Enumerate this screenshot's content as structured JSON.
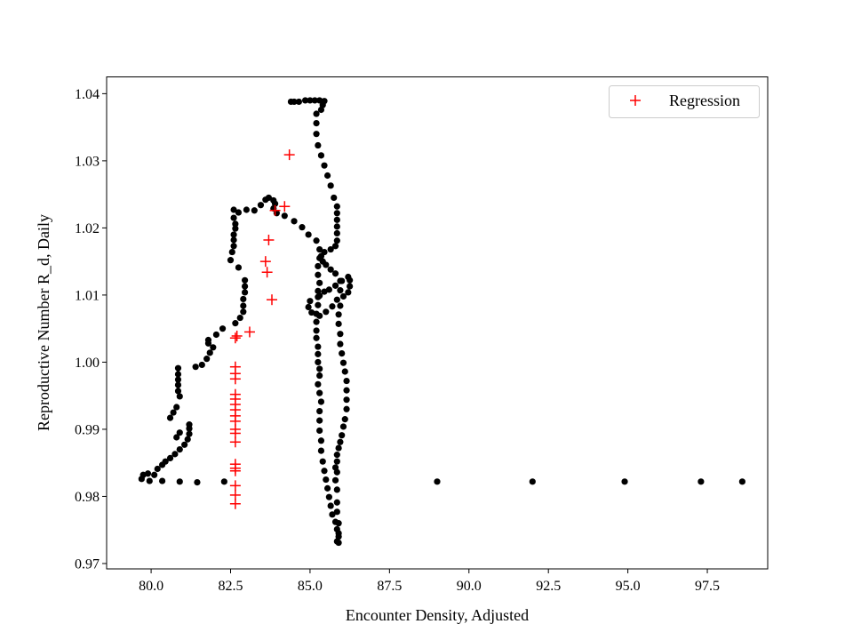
{
  "chart_data": {
    "type": "scatter",
    "title": "",
    "xlabel": "Encounter Density, Adjusted",
    "ylabel": "Reproductive Number R_d, Daily",
    "xlim": [
      78.6,
      99.4
    ],
    "ylim": [
      0.9692,
      1.0425
    ],
    "xticks": [
      "80.0",
      "82.5",
      "85.0",
      "87.5",
      "90.0",
      "92.5",
      "95.0",
      "97.5"
    ],
    "yticks": [
      "0.97",
      "0.98",
      "0.99",
      "1.00",
      "1.01",
      "1.02",
      "1.03",
      "1.04"
    ],
    "grid": false,
    "legend_position": "top-right",
    "series": [
      {
        "marker": "dot",
        "color": "#000000",
        "points": [
          [
            79.7,
            0.9826
          ],
          [
            79.75,
            0.9832
          ],
          [
            79.9,
            0.9834
          ],
          [
            80.1,
            0.9832
          ],
          [
            80.2,
            0.9841
          ],
          [
            80.35,
            0.9847
          ],
          [
            80.45,
            0.9852
          ],
          [
            80.6,
            0.9857
          ],
          [
            80.75,
            0.9863
          ],
          [
            80.9,
            0.987
          ],
          [
            81.05,
            0.9877
          ],
          [
            81.15,
            0.9885
          ],
          [
            81.2,
            0.9893
          ],
          [
            81.2,
            0.9901
          ],
          [
            81.2,
            0.9907
          ],
          [
            80.9,
            0.9895
          ],
          [
            80.8,
            0.9888
          ],
          [
            80.6,
            0.9917
          ],
          [
            80.7,
            0.9925
          ],
          [
            80.8,
            0.9933
          ],
          [
            80.9,
            0.9949
          ],
          [
            80.85,
            0.9957
          ],
          [
            80.85,
            0.9966
          ],
          [
            80.85,
            0.9974
          ],
          [
            80.85,
            0.9982
          ],
          [
            80.85,
            0.9991
          ],
          [
            81.4,
            0.9993
          ],
          [
            81.6,
            0.9996
          ],
          [
            81.75,
            1.0005
          ],
          [
            81.85,
            1.0014
          ],
          [
            81.95,
            1.0022
          ],
          [
            81.8,
            1.0028
          ],
          [
            81.8,
            1.0033
          ],
          [
            82.05,
            1.0041
          ],
          [
            82.25,
            1.005
          ],
          [
            82.65,
            1.0058
          ],
          [
            82.8,
            1.0066
          ],
          [
            82.9,
            1.0075
          ],
          [
            82.9,
            1.0084
          ],
          [
            82.9,
            1.0094
          ],
          [
            82.95,
            1.0104
          ],
          [
            82.95,
            1.0113
          ],
          [
            82.95,
            1.0122
          ],
          [
            82.75,
            1.0141
          ],
          [
            82.5,
            1.0152
          ],
          [
            82.55,
            1.0164
          ],
          [
            82.6,
            1.0173
          ],
          [
            82.6,
            1.0182
          ],
          [
            82.6,
            1.019
          ],
          [
            82.65,
            1.0199
          ],
          [
            82.65,
            1.0206
          ],
          [
            82.6,
            1.0215
          ],
          [
            82.6,
            1.0227
          ],
          [
            82.75,
            1.0223
          ],
          [
            83.0,
            1.0227
          ],
          [
            83.25,
            1.0226
          ],
          [
            83.45,
            1.0234
          ],
          [
            83.6,
            1.0242
          ],
          [
            83.7,
            1.0245
          ],
          [
            83.85,
            1.0241
          ],
          [
            83.9,
            1.0236
          ],
          [
            83.85,
            1.0229
          ],
          [
            83.95,
            1.0222
          ],
          [
            84.2,
            1.0218
          ],
          [
            84.5,
            1.021
          ],
          [
            84.75,
            1.0201
          ],
          [
            84.95,
            1.019
          ],
          [
            85.2,
            1.0181
          ],
          [
            85.3,
            1.0168
          ],
          [
            85.3,
            1.0155
          ],
          [
            85.25,
            1.0143
          ],
          [
            85.25,
            1.013
          ],
          [
            85.3,
            1.0118
          ],
          [
            85.25,
            1.0106
          ],
          [
            85.25,
            1.0097
          ],
          [
            85.25,
            1.0085
          ],
          [
            85.2,
            1.0072
          ],
          [
            85.2,
            1.006
          ],
          [
            85.2,
            1.0047
          ],
          [
            85.2,
            1.0036
          ],
          [
            85.25,
            1.0023
          ],
          [
            85.25,
            1.0012
          ],
          [
            85.25,
            1.0
          ],
          [
            85.3,
            0.999
          ],
          [
            85.3,
            0.998
          ],
          [
            85.25,
            0.9967
          ],
          [
            85.3,
            0.9954
          ],
          [
            85.35,
            0.9941
          ],
          [
            85.3,
            0.9927
          ],
          [
            85.3,
            0.9913
          ],
          [
            85.3,
            0.9898
          ],
          [
            85.35,
            0.9883
          ],
          [
            85.35,
            0.9868
          ],
          [
            85.4,
            0.9852
          ],
          [
            85.45,
            0.9838
          ],
          [
            85.5,
            0.9825
          ],
          [
            85.55,
            0.9812
          ],
          [
            85.6,
            0.9799
          ],
          [
            85.65,
            0.9786
          ],
          [
            85.7,
            0.9773
          ],
          [
            85.8,
            0.9762
          ],
          [
            85.85,
            0.9751
          ],
          [
            85.9,
            0.974
          ],
          [
            85.9,
            0.9731
          ],
          [
            85.85,
            0.9733
          ],
          [
            85.9,
            0.9745
          ],
          [
            85.9,
            0.976
          ],
          [
            85.85,
            0.9777
          ],
          [
            85.85,
            0.9791
          ],
          [
            85.85,
            0.981
          ],
          [
            85.8,
            0.9824
          ],
          [
            85.85,
            0.9836
          ],
          [
            85.8,
            0.9843
          ],
          [
            85.85,
            0.9852
          ],
          [
            85.85,
            0.9862
          ],
          [
            85.9,
            0.9872
          ],
          [
            85.95,
            0.9881
          ],
          [
            86.0,
            0.9891
          ],
          [
            86.05,
            0.9904
          ],
          [
            86.1,
            0.9915
          ],
          [
            86.15,
            0.993
          ],
          [
            86.15,
            0.9944
          ],
          [
            86.15,
            0.9958
          ],
          [
            86.15,
            0.9972
          ],
          [
            86.1,
            0.9986
          ],
          [
            86.05,
            0.9999
          ],
          [
            86.0,
            1.0013
          ],
          [
            85.95,
            1.0027
          ],
          [
            85.95,
            1.0042
          ],
          [
            85.9,
            1.0057
          ],
          [
            85.9,
            1.0071
          ],
          [
            85.95,
            1.0084
          ],
          [
            86.05,
            1.0098
          ],
          [
            86.2,
            1.0104
          ],
          [
            86.25,
            1.0113
          ],
          [
            86.25,
            1.0122
          ],
          [
            86.2,
            1.0127
          ],
          [
            86.0,
            1.0121
          ],
          [
            85.8,
            1.0114
          ],
          [
            85.6,
            1.0108
          ],
          [
            85.45,
            1.0105
          ],
          [
            85.3,
            1.0099
          ],
          [
            85.0,
            1.0091
          ],
          [
            84.95,
            1.0082
          ],
          [
            85.05,
            1.0074
          ],
          [
            85.3,
            1.0069
          ],
          [
            85.5,
            1.0075
          ],
          [
            85.7,
            1.0083
          ],
          [
            85.85,
            1.0093
          ],
          [
            85.95,
            1.0107
          ],
          [
            85.95,
            1.0121
          ],
          [
            85.8,
            1.0132
          ],
          [
            85.65,
            1.0138
          ],
          [
            85.5,
            1.0145
          ],
          [
            85.4,
            1.015
          ],
          [
            85.35,
            1.0158
          ],
          [
            85.45,
            1.0164
          ],
          [
            85.65,
            1.0168
          ],
          [
            85.8,
            1.0173
          ],
          [
            85.85,
            1.0181
          ],
          [
            85.85,
            1.0192
          ],
          [
            85.85,
            1.0202
          ],
          [
            85.85,
            1.0212
          ],
          [
            85.85,
            1.0222
          ],
          [
            85.85,
            1.0232
          ],
          [
            85.75,
            1.0245
          ],
          [
            85.65,
            1.0263
          ],
          [
            85.55,
            1.0278
          ],
          [
            85.45,
            1.0293
          ],
          [
            85.35,
            1.0308
          ],
          [
            85.25,
            1.0323
          ],
          [
            85.2,
            1.034
          ],
          [
            85.2,
            1.0356
          ],
          [
            85.2,
            1.037
          ],
          [
            85.35,
            1.0376
          ],
          [
            85.4,
            1.0383
          ],
          [
            85.45,
            1.0389
          ],
          [
            85.3,
            1.039
          ],
          [
            85.15,
            1.039
          ],
          [
            85.0,
            1.039
          ],
          [
            84.85,
            1.039
          ],
          [
            84.65,
            1.0388
          ],
          [
            84.5,
            1.0388
          ],
          [
            84.4,
            1.0388
          ],
          [
            82.3,
            0.9822
          ],
          [
            81.45,
            0.9821
          ],
          [
            80.9,
            0.9822
          ],
          [
            80.35,
            0.9823
          ],
          [
            79.95,
            0.9823
          ],
          [
            89.0,
            0.9822
          ],
          [
            92.0,
            0.9822
          ],
          [
            94.9,
            0.9822
          ],
          [
            97.3,
            0.9822
          ],
          [
            98.6,
            0.9822
          ]
        ]
      },
      {
        "name": "Regression",
        "marker": "plus",
        "color": "#ff0000",
        "points": [
          [
            84.35,
            1.0309
          ],
          [
            84.2,
            1.0232
          ],
          [
            83.9,
            1.0226
          ],
          [
            83.7,
            1.0182
          ],
          [
            83.6,
            1.015
          ],
          [
            83.65,
            1.0134
          ],
          [
            83.8,
            1.0093
          ],
          [
            83.1,
            1.0045
          ],
          [
            82.7,
            1.0039
          ],
          [
            82.65,
            1.0036
          ],
          [
            82.65,
            0.9993
          ],
          [
            82.65,
            0.9983
          ],
          [
            82.65,
            0.9975
          ],
          [
            82.65,
            0.9952
          ],
          [
            82.65,
            0.9945
          ],
          [
            82.65,
            0.9937
          ],
          [
            82.65,
            0.9929
          ],
          [
            82.65,
            0.992
          ],
          [
            82.65,
            0.9912
          ],
          [
            82.65,
            0.99
          ],
          [
            82.65,
            0.9894
          ],
          [
            82.65,
            0.9881
          ],
          [
            82.65,
            0.9848
          ],
          [
            82.65,
            0.9842
          ],
          [
            82.65,
            0.9838
          ],
          [
            82.65,
            0.9816
          ],
          [
            82.65,
            0.9802
          ],
          [
            82.65,
            0.9789
          ]
        ]
      }
    ]
  }
}
